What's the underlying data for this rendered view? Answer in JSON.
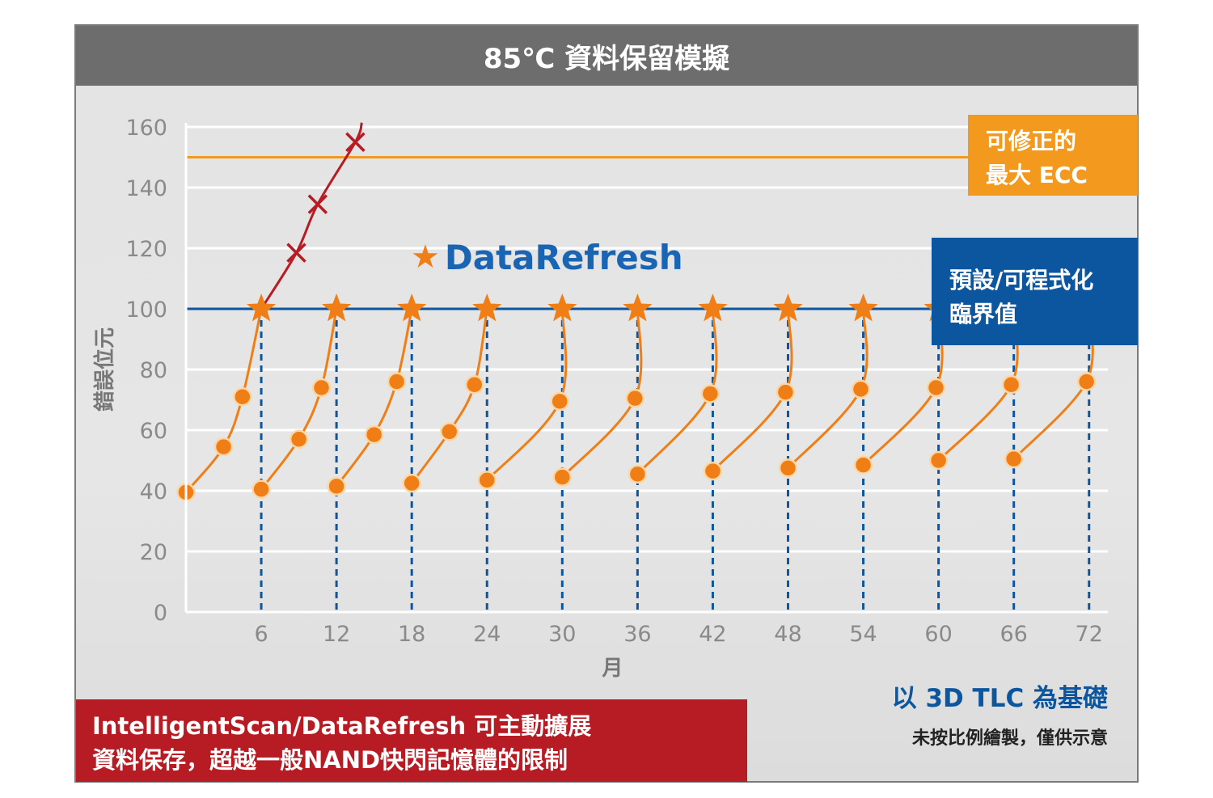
{
  "title": "85℃ 資料保留模擬",
  "ecc_label": [
    "可修正的",
    "最大 ECC"
  ],
  "threshold_label": [
    "預設/可程式化",
    "臨界值"
  ],
  "legend_label": "DataRefresh",
  "basis_title": "以 3D TLC 為基礎",
  "basis_note": "未按比例繪製，僅供示意",
  "banner": [
    "IntelligentScan/DataRefresh 可主動擴展",
    "資料保存，超越一般NAND快閃記憶體的限制"
  ],
  "colors": {
    "ecc": "#f39a1e",
    "threshold": "#0c56a0",
    "refresh_series": "#f07e16",
    "no_refresh_series": "#b71c24",
    "banner": "#b71c24",
    "title_bar": "#6d6d6d"
  },
  "chart_data": {
    "type": "line",
    "title": "85℃ 資料保留模擬",
    "xlabel": "月",
    "ylabel": "錯誤位元",
    "xlim": [
      0,
      72
    ],
    "ylim": [
      0,
      160
    ],
    "x_ticks": [
      6,
      12,
      18,
      24,
      30,
      36,
      42,
      48,
      54,
      60,
      66,
      72
    ],
    "y_ticks": [
      0,
      20,
      40,
      60,
      80,
      100,
      120,
      140,
      160
    ],
    "grid": true,
    "reference_lines": [
      {
        "label": "可修正的 最大 ECC",
        "y": 150
      },
      {
        "label": "預設/可程式化 臨界值",
        "y": 100
      }
    ],
    "refresh_points_x": [
      6,
      12,
      18,
      24,
      30,
      36,
      42,
      48,
      54,
      60,
      66,
      72
    ],
    "series": [
      {
        "name": "DataRefresh",
        "cycles": [
          {
            "x": [
              0,
              3,
              4.5,
              6
            ],
            "y": [
              39.5,
              54.5,
              71,
              100
            ]
          },
          {
            "x": [
              6,
              9,
              10.8,
              12
            ],
            "y": [
              40.5,
              57,
              74,
              100
            ]
          },
          {
            "x": [
              12,
              15,
              16.8,
              18
            ],
            "y": [
              41.5,
              58.5,
              76,
              100
            ]
          },
          {
            "x": [
              18,
              21,
              23,
              24
            ],
            "y": [
              42.5,
              59.5,
              75,
              100
            ]
          },
          {
            "x": [
              24,
              29.8,
              30
            ],
            "y": [
              43.5,
              69.5,
              100
            ]
          },
          {
            "x": [
              30,
              35.8,
              36
            ],
            "y": [
              44.5,
              70.5,
              100
            ]
          },
          {
            "x": [
              36,
              41.8,
              42
            ],
            "y": [
              45.5,
              72,
              100
            ]
          },
          {
            "x": [
              42,
              47.8,
              48
            ],
            "y": [
              46.5,
              72.5,
              100
            ]
          },
          {
            "x": [
              48,
              53.8,
              54
            ],
            "y": [
              47.5,
              73.5,
              100
            ]
          },
          {
            "x": [
              54,
              59.8,
              60
            ],
            "y": [
              48.5,
              74,
              100
            ]
          },
          {
            "x": [
              60,
              65.8,
              66
            ],
            "y": [
              50,
              75,
              100
            ]
          },
          {
            "x": [
              66,
              71.8,
              72
            ],
            "y": [
              50.5,
              76,
              100
            ]
          }
        ]
      },
      {
        "name": "",
        "x": [
          6,
          8.8,
          10.5,
          13.5
        ],
        "y": [
          100,
          118.5,
          134.5,
          155
        ]
      }
    ]
  }
}
